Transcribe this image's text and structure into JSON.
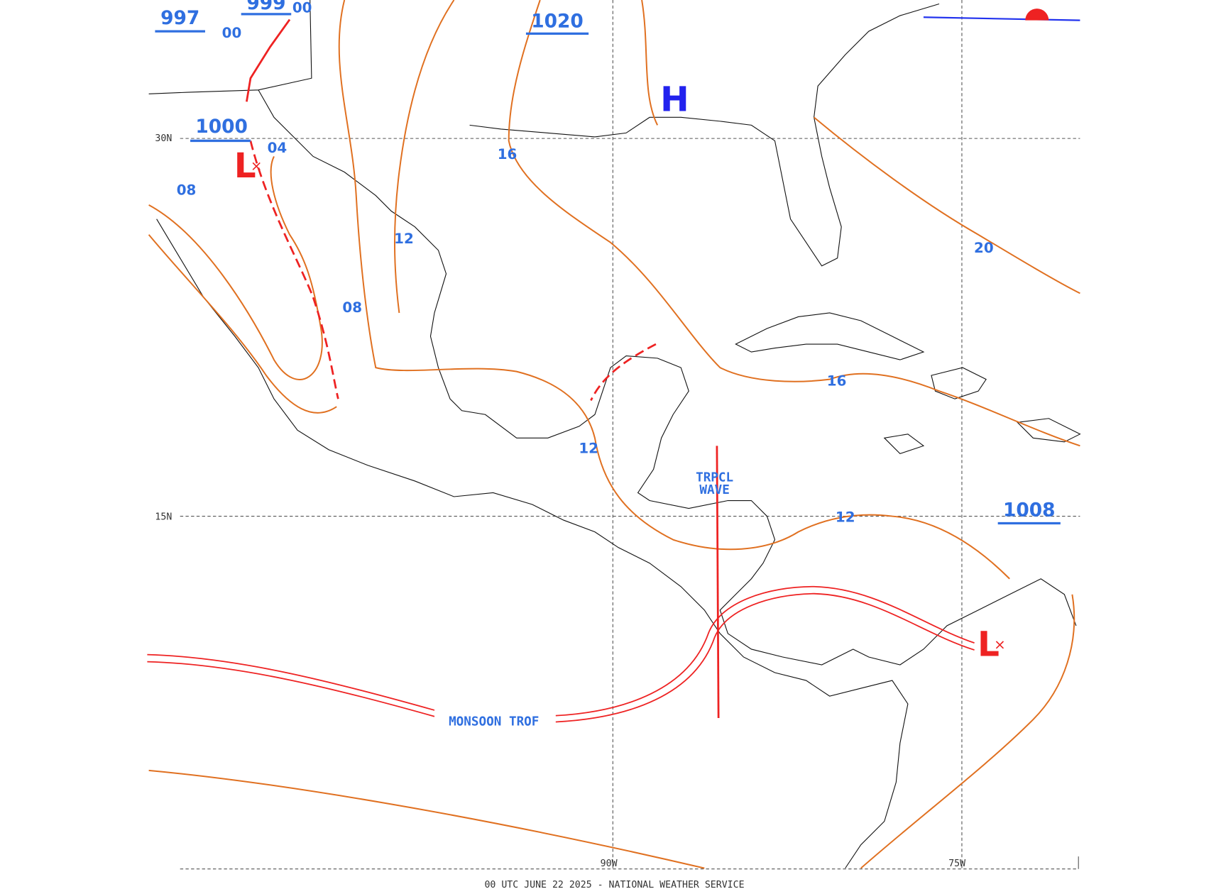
{
  "map": {
    "footer": "00 UTC JUNE 22 2025 - NATIONAL WEATHER SERVICE",
    "grid_labels": [
      "30N",
      "15N",
      "90W",
      "75W"
    ],
    "pressure_labels": [
      "997",
      "999",
      "00",
      "00",
      "1020",
      "1000",
      "04",
      "08",
      "08",
      "12",
      "16",
      "12",
      "16",
      "20",
      "12",
      "1008"
    ],
    "centers": [
      "H",
      "L",
      "L"
    ],
    "tropical_wave": [
      "TRPCL",
      "WAVE"
    ],
    "monsoon_trough": "MONSOON TROF"
  }
}
